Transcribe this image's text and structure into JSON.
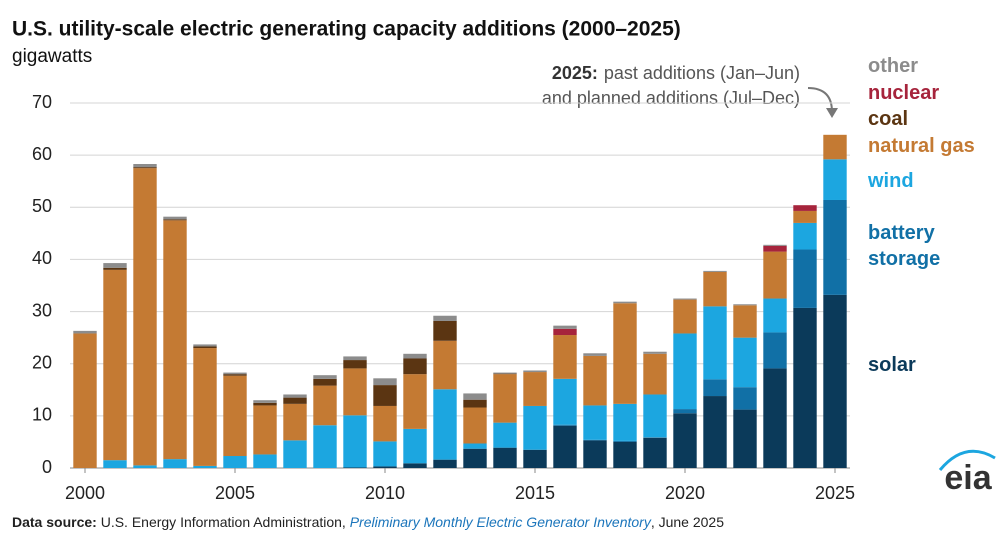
{
  "chart_data": {
    "type": "bar",
    "stacked": true,
    "title": "U.S. utility-scale electric generating capacity additions (2000–2025)",
    "subtitle": "gigawatts",
    "annotation": {
      "bold": "2025:",
      "lines": [
        "past additions (Jan–Jun)",
        "and planned additions (Jul–Dec)"
      ]
    },
    "x": [
      2000,
      2001,
      2002,
      2003,
      2004,
      2005,
      2006,
      2007,
      2008,
      2009,
      2010,
      2011,
      2012,
      2013,
      2014,
      2015,
      2016,
      2017,
      2018,
      2019,
      2020,
      2021,
      2022,
      2023,
      2024,
      2025
    ],
    "xlim": [
      1999.5,
      2025.5
    ],
    "xticks": [
      2000,
      2005,
      2010,
      2015,
      2020,
      2025
    ],
    "ylim": [
      0,
      70
    ],
    "yticks": [
      0,
      10,
      20,
      30,
      40,
      50,
      60,
      70
    ],
    "grid": true,
    "series": [
      {
        "name": "solar",
        "color": "#0b3a5a",
        "values": [
          0,
          0,
          0,
          0,
          0,
          0,
          0,
          0,
          0,
          0.1,
          0.3,
          0.9,
          1.6,
          3.7,
          3.9,
          3.5,
          8.1,
          5.3,
          5.0,
          5.8,
          10.5,
          13.8,
          11.2,
          19.1,
          30.7,
          33.2
        ]
      },
      {
        "name": "battery storage",
        "color": "#1170a6",
        "values": [
          0,
          0,
          0,
          0,
          0,
          0,
          0,
          0,
          0,
          0,
          0,
          0,
          0,
          0,
          0,
          0,
          0.2,
          0.1,
          0.2,
          0.1,
          0.8,
          3.2,
          4.3,
          6.9,
          11.2,
          18.2
        ]
      },
      {
        "name": "wind",
        "color": "#1ca6e0",
        "values": [
          0,
          1.5,
          0.5,
          1.7,
          0.4,
          2.3,
          2.6,
          5.3,
          8.2,
          10.0,
          4.8,
          6.6,
          13.5,
          1.0,
          4.8,
          8.4,
          8.8,
          6.6,
          7.1,
          8.2,
          14.5,
          14.0,
          9.5,
          6.5,
          5.1,
          7.8
        ]
      },
      {
        "name": "natural gas",
        "color": "#c47a33",
        "values": [
          25.8,
          36.5,
          57.0,
          45.8,
          22.6,
          15.4,
          9.4,
          7.0,
          7.6,
          9.0,
          6.8,
          10.5,
          9.3,
          6.9,
          9.3,
          6.5,
          8.4,
          9.5,
          19.3,
          7.8,
          6.5,
          6.6,
          6.2,
          9.0,
          2.3,
          4.7
        ]
      },
      {
        "name": "coal",
        "color": "#5b3512",
        "values": [
          0,
          0.4,
          0.2,
          0.2,
          0.3,
          0.3,
          0.5,
          1.2,
          1.3,
          1.6,
          4.0,
          3.0,
          3.8,
          1.5,
          0.1,
          0,
          0,
          0,
          0,
          0,
          0,
          0,
          0,
          0,
          0,
          0
        ]
      },
      {
        "name": "nuclear",
        "color": "#a6243c",
        "values": [
          0,
          0,
          0,
          0,
          0,
          0,
          0,
          0,
          0,
          0,
          0,
          0,
          0,
          0,
          0,
          0,
          1.2,
          0,
          0,
          0,
          0,
          0,
          0,
          1.1,
          1.1,
          0
        ]
      },
      {
        "name": "other",
        "color": "#8c8c8c",
        "values": [
          0.5,
          0.9,
          0.6,
          0.5,
          0.4,
          0.3,
          0.5,
          0.6,
          0.7,
          0.7,
          1.3,
          0.9,
          1.0,
          1.2,
          0.2,
          0.3,
          0.6,
          0.5,
          0.3,
          0.4,
          0.2,
          0.2,
          0.2,
          0.2,
          0,
          0
        ]
      }
    ],
    "source": {
      "bold": "Data source:",
      "text": "U.S. Energy Information Administration,",
      "italic": "Preliminary Monthly Electric Generator Inventory",
      "tail": ", June 2025"
    },
    "logo": "eia"
  }
}
